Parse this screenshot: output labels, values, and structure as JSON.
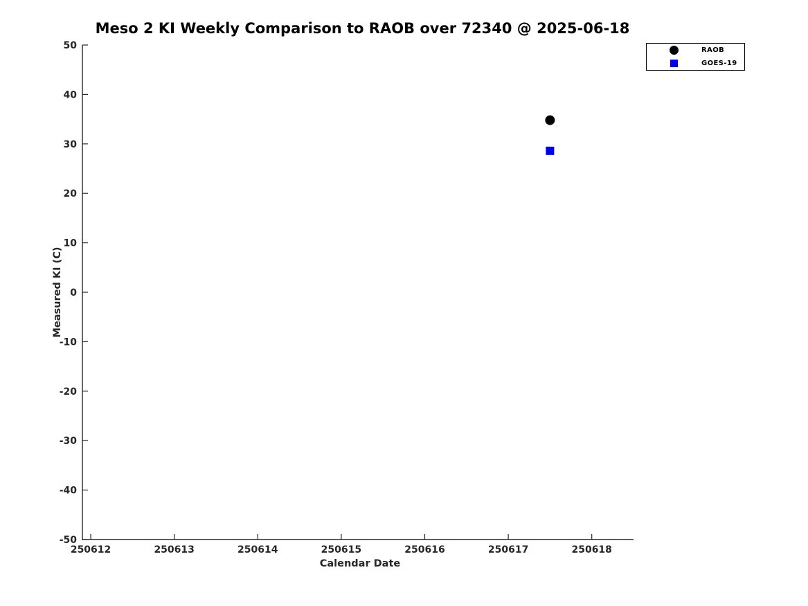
{
  "figure": {
    "background_color": "#ffffff"
  },
  "chart_data": {
    "type": "scatter",
    "title": "Meso 2 KI Weekly Comparison to RAOB over 72340 @ 2025-06-18",
    "xlabel": "Calendar Date",
    "ylabel": "Measured KI (C)",
    "xlim": [
      250611.9,
      250618.5
    ],
    "ylim": [
      -50,
      50
    ],
    "x_ticks": [
      250612,
      250613,
      250614,
      250615,
      250616,
      250617,
      250618
    ],
    "y_ticks": [
      50,
      40,
      30,
      20,
      10,
      0,
      -10,
      -20,
      -30,
      -40,
      -50
    ],
    "grid": false,
    "spines": [
      "left",
      "bottom"
    ],
    "legend": {
      "position": "top-right",
      "border_color": "#000000",
      "background": "#ffffff"
    },
    "series": [
      {
        "name": "RAOB",
        "marker": "circle",
        "color": "#000000",
        "points": [
          {
            "x": 250617.5,
            "y": 34.8
          }
        ]
      },
      {
        "name": "GOES-19",
        "marker": "square",
        "color": "#0000ee",
        "points": [
          {
            "x": 250617.5,
            "y": 28.6
          }
        ]
      }
    ]
  },
  "colors": {
    "axis": "#262626",
    "title_text": "#000000",
    "marker_raob": "#000000",
    "marker_goes19": "#0000ee"
  }
}
